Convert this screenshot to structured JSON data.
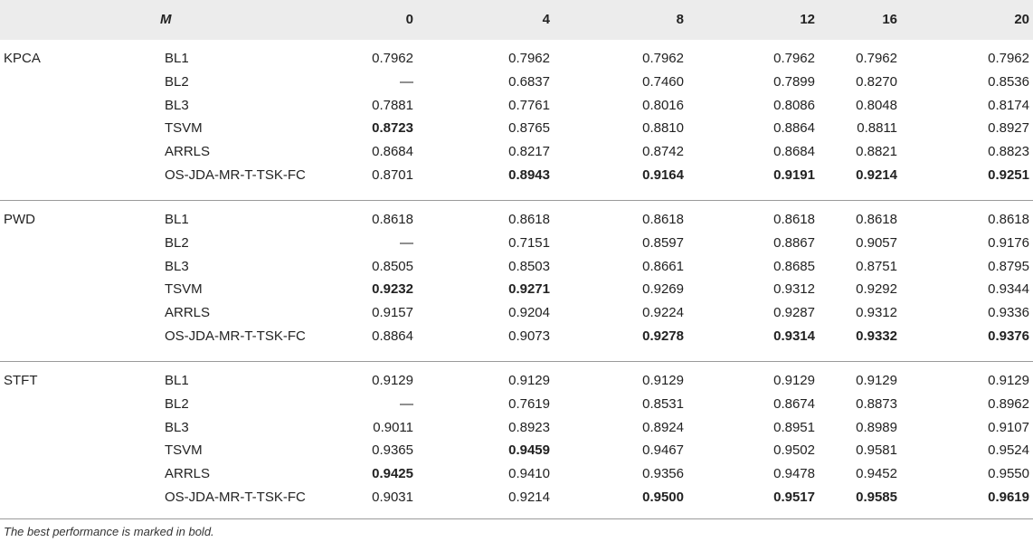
{
  "header": {
    "m_label": "M",
    "columns": [
      "0",
      "4",
      "8",
      "12",
      "16",
      "20"
    ]
  },
  "groups": [
    {
      "name": "KPCA",
      "rows": [
        {
          "method": "BL1",
          "values": [
            "0.7962",
            "0.7962",
            "0.7962",
            "0.7962",
            "0.7962",
            "0.7962"
          ],
          "bold": [
            false,
            false,
            false,
            false,
            false,
            false
          ]
        },
        {
          "method": "BL2",
          "values": [
            "—",
            "0.6837",
            "0.7460",
            "0.7899",
            "0.8270",
            "0.8536"
          ],
          "bold": [
            false,
            false,
            false,
            false,
            false,
            false
          ]
        },
        {
          "method": "BL3",
          "values": [
            "0.7881",
            "0.7761",
            "0.8016",
            "0.8086",
            "0.8048",
            "0.8174"
          ],
          "bold": [
            false,
            false,
            false,
            false,
            false,
            false
          ]
        },
        {
          "method": "TSVM",
          "values": [
            "0.8723",
            "0.8765",
            "0.8810",
            "0.8864",
            "0.8811",
            "0.8927"
          ],
          "bold": [
            true,
            false,
            false,
            false,
            false,
            false
          ]
        },
        {
          "method": "ARRLS",
          "values": [
            "0.8684",
            "0.8217",
            "0.8742",
            "0.8684",
            "0.8821",
            "0.8823"
          ],
          "bold": [
            false,
            false,
            false,
            false,
            false,
            false
          ]
        },
        {
          "method": "OS-JDA-MR-T-TSK-FC",
          "values": [
            "0.8701",
            "0.8943",
            "0.9164",
            "0.9191",
            "0.9214",
            "0.9251"
          ],
          "bold": [
            false,
            true,
            true,
            true,
            true,
            true
          ]
        }
      ]
    },
    {
      "name": "PWD",
      "rows": [
        {
          "method": "BL1",
          "values": [
            "0.8618",
            "0.8618",
            "0.8618",
            "0.8618",
            "0.8618",
            "0.8618"
          ],
          "bold": [
            false,
            false,
            false,
            false,
            false,
            false
          ]
        },
        {
          "method": "BL2",
          "values": [
            "—",
            "0.7151",
            "0.8597",
            "0.8867",
            "0.9057",
            "0.9176"
          ],
          "bold": [
            false,
            false,
            false,
            false,
            false,
            false
          ]
        },
        {
          "method": "BL3",
          "values": [
            "0.8505",
            "0.8503",
            "0.8661",
            "0.8685",
            "0.8751",
            "0.8795"
          ],
          "bold": [
            false,
            false,
            false,
            false,
            false,
            false
          ]
        },
        {
          "method": "TSVM",
          "values": [
            "0.9232",
            "0.9271",
            "0.9269",
            "0.9312",
            "0.9292",
            "0.9344"
          ],
          "bold": [
            true,
            true,
            false,
            false,
            false,
            false
          ]
        },
        {
          "method": "ARRLS",
          "values": [
            "0.9157",
            "0.9204",
            "0.9224",
            "0.9287",
            "0.9312",
            "0.9336"
          ],
          "bold": [
            false,
            false,
            false,
            false,
            false,
            false
          ]
        },
        {
          "method": "OS-JDA-MR-T-TSK-FC",
          "values": [
            "0.8864",
            "0.9073",
            "0.9278",
            "0.9314",
            "0.9332",
            "0.9376"
          ],
          "bold": [
            false,
            false,
            true,
            true,
            true,
            true
          ]
        }
      ]
    },
    {
      "name": "STFT",
      "rows": [
        {
          "method": "BL1",
          "values": [
            "0.9129",
            "0.9129",
            "0.9129",
            "0.9129",
            "0.9129",
            "0.9129"
          ],
          "bold": [
            false,
            false,
            false,
            false,
            false,
            false
          ]
        },
        {
          "method": "BL2",
          "values": [
            "—",
            "0.7619",
            "0.8531",
            "0.8674",
            "0.8873",
            "0.8962"
          ],
          "bold": [
            false,
            false,
            false,
            false,
            false,
            false
          ]
        },
        {
          "method": "BL3",
          "values": [
            "0.9011",
            "0.8923",
            "0.8924",
            "0.8951",
            "0.8989",
            "0.9107"
          ],
          "bold": [
            false,
            false,
            false,
            false,
            false,
            false
          ]
        },
        {
          "method": "TSVM",
          "values": [
            "0.9365",
            "0.9459",
            "0.9467",
            "0.9502",
            "0.9581",
            "0.9524"
          ],
          "bold": [
            false,
            true,
            false,
            false,
            false,
            false
          ]
        },
        {
          "method": "ARRLS",
          "values": [
            "0.9425",
            "0.9410",
            "0.9356",
            "0.9478",
            "0.9452",
            "0.9550"
          ],
          "bold": [
            true,
            false,
            false,
            false,
            false,
            false
          ]
        },
        {
          "method": "OS-JDA-MR-T-TSK-FC",
          "values": [
            "0.9031",
            "0.9214",
            "0.9500",
            "0.9517",
            "0.9585",
            "0.9619"
          ],
          "bold": [
            false,
            false,
            true,
            true,
            true,
            true
          ]
        }
      ]
    }
  ],
  "footnote": "The best performance is marked in bold."
}
